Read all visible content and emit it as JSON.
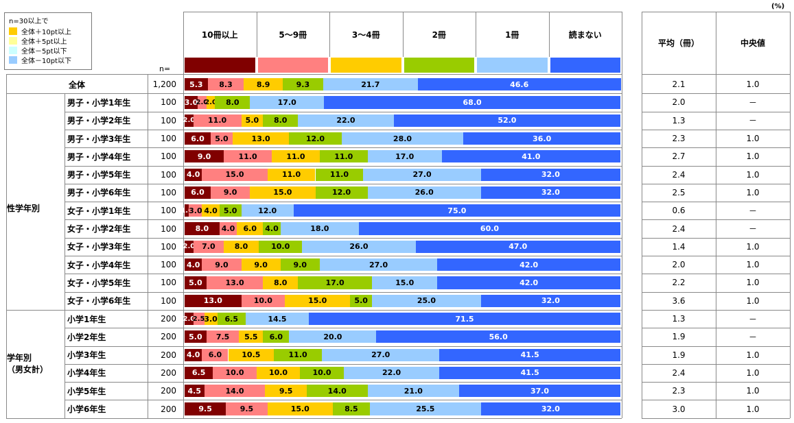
{
  "unit_label": "(%)",
  "n_header": "n=",
  "legend": {
    "title": "n=30以上で",
    "items": [
      {
        "label": "全体＋10pt以上",
        "color": "#FFCC00"
      },
      {
        "label": "全体＋5pt以上",
        "color": "#FFFF99"
      },
      {
        "label": "全体－5pt以下",
        "color": "#CCFFFF"
      },
      {
        "label": "全体－10pt以下",
        "color": "#99CCFF"
      }
    ]
  },
  "stats_headers": [
    "平均（冊）",
    "中央値"
  ],
  "group_labels": {
    "gender_grade": "性学年別",
    "grade": "学年別\n（男女計）"
  },
  "chart_data": {
    "type": "bar",
    "stacked": true,
    "orientation": "horizontal",
    "categories_header": [
      "10冊以上",
      "5～9冊",
      "3～4冊",
      "2冊",
      "1冊",
      "読まない"
    ],
    "series_colors": [
      "#800000",
      "#FF8080",
      "#FFCC00",
      "#99CC00",
      "#99CCFF",
      "#3366FF"
    ],
    "xlim": [
      0,
      100
    ],
    "rows": [
      {
        "label": "全体",
        "n": "1,200",
        "values": [
          5.3,
          8.3,
          8.9,
          9.3,
          21.7,
          46.6
        ],
        "labels": [
          "5.3",
          "8.3",
          "8.9",
          "9.3",
          "21.7",
          "46.6"
        ],
        "mean": "2.1",
        "median": "1.0"
      },
      {
        "label": "男子・小学1年生",
        "n": "100",
        "values": [
          3.0,
          2.0,
          2.0,
          8.0,
          17.0,
          68.0
        ],
        "labels": [
          "3.0",
          "2.0",
          "2.0",
          "8.0",
          "17.0",
          "68.0"
        ],
        "mean": "2.0",
        "median": "－"
      },
      {
        "label": "男子・小学2年生",
        "n": "100",
        "values": [
          2.0,
          11.0,
          5.0,
          8.0,
          22.0,
          52.0
        ],
        "labels": [
          "2.0",
          "11.0",
          "5.0",
          "8.0",
          "22.0",
          "52.0"
        ],
        "mean": "1.3",
        "median": "－"
      },
      {
        "label": "男子・小学3年生",
        "n": "100",
        "values": [
          6.0,
          5.0,
          13.0,
          12.0,
          28.0,
          36.0
        ],
        "labels": [
          "6.0",
          "5.0",
          "13.0",
          "12.0",
          "28.0",
          "36.0"
        ],
        "mean": "2.3",
        "median": "1.0"
      },
      {
        "label": "男子・小学4年生",
        "n": "100",
        "values": [
          9.0,
          11.0,
          11.0,
          11.0,
          17.0,
          41.0
        ],
        "labels": [
          "9.0",
          "11.0",
          "11.0",
          "11.0",
          "17.0",
          "41.0"
        ],
        "mean": "2.7",
        "median": "1.0"
      },
      {
        "label": "男子・小学5年生",
        "n": "100",
        "values": [
          4.0,
          15.0,
          11.0,
          11.0,
          27.0,
          32.0
        ],
        "labels": [
          "4.0",
          "15.0",
          "11.0",
          "11.0",
          "27.0",
          "32.0"
        ],
        "mean": "2.4",
        "median": "1.0"
      },
      {
        "label": "男子・小学6年生",
        "n": "100",
        "values": [
          6.0,
          9.0,
          15.0,
          12.0,
          26.0,
          32.0
        ],
        "labels": [
          "6.0",
          "9.0",
          "15.0",
          "12.0",
          "26.0",
          "32.0"
        ],
        "mean": "2.5",
        "median": "1.0"
      },
      {
        "label": "女子・小学1年生",
        "n": "100",
        "values": [
          1.0,
          3.0,
          4.0,
          5.0,
          12.0,
          75.0
        ],
        "labels": [
          "1.0",
          "3.0",
          "4.0",
          "5.0",
          "12.0",
          "75.0"
        ],
        "mean": "0.6",
        "median": "－"
      },
      {
        "label": "女子・小学2年生",
        "n": "100",
        "values": [
          8.0,
          4.0,
          6.0,
          4.0,
          18.0,
          60.0
        ],
        "labels": [
          "8.0",
          "4.0",
          "6.0",
          "4.0",
          "18.0",
          "60.0"
        ],
        "mean": "2.4",
        "median": "－"
      },
      {
        "label": "女子・小学3年生",
        "n": "100",
        "values": [
          2.0,
          7.0,
          8.0,
          10.0,
          26.0,
          47.0
        ],
        "labels": [
          "2.0",
          "7.0",
          "8.0",
          "10.0",
          "26.0",
          "47.0"
        ],
        "mean": "1.4",
        "median": "1.0"
      },
      {
        "label": "女子・小学4年生",
        "n": "100",
        "values": [
          4.0,
          9.0,
          9.0,
          9.0,
          27.0,
          42.0
        ],
        "labels": [
          "4.0",
          "9.0",
          "9.0",
          "9.0",
          "27.0",
          "42.0"
        ],
        "mean": "2.0",
        "median": "1.0"
      },
      {
        "label": "女子・小学5年生",
        "n": "100",
        "values": [
          5.0,
          13.0,
          8.0,
          17.0,
          15.0,
          42.0
        ],
        "labels": [
          "5.0",
          "13.0",
          "8.0",
          "17.0",
          "15.0",
          "42.0"
        ],
        "mean": "2.2",
        "median": "1.0"
      },
      {
        "label": "女子・小学6年生",
        "n": "100",
        "values": [
          13.0,
          10.0,
          15.0,
          5.0,
          25.0,
          32.0
        ],
        "labels": [
          "13.0",
          "10.0",
          "15.0",
          "5.0",
          "25.0",
          "32.0"
        ],
        "mean": "3.6",
        "median": "1.0"
      },
      {
        "label": "小学1年生",
        "n": "200",
        "values": [
          2.0,
          2.5,
          3.0,
          6.5,
          14.5,
          71.5
        ],
        "labels": [
          "2.0",
          "2.5",
          "3.0",
          "6.5",
          "14.5",
          "71.5"
        ],
        "mean": "1.3",
        "median": "－"
      },
      {
        "label": "小学2年生",
        "n": "200",
        "values": [
          5.0,
          7.5,
          5.5,
          6.0,
          20.0,
          56.0
        ],
        "labels": [
          "5.0",
          "7.5",
          "5.5",
          "6.0",
          "20.0",
          "56.0"
        ],
        "mean": "1.9",
        "median": "－"
      },
      {
        "label": "小学3年生",
        "n": "200",
        "values": [
          4.0,
          6.0,
          10.5,
          11.0,
          27.0,
          41.5
        ],
        "labels": [
          "4.0",
          "6.0",
          "10.5",
          "11.0",
          "27.0",
          "41.5"
        ],
        "mean": "1.9",
        "median": "1.0"
      },
      {
        "label": "小学4年生",
        "n": "200",
        "values": [
          6.5,
          10.0,
          10.0,
          10.0,
          22.0,
          41.5
        ],
        "labels": [
          "6.5",
          "10.0",
          "10.0",
          "10.0",
          "22.0",
          "41.5"
        ],
        "mean": "2.4",
        "median": "1.0"
      },
      {
        "label": "小学5年生",
        "n": "200",
        "values": [
          4.5,
          14.0,
          9.5,
          14.0,
          21.0,
          37.0
        ],
        "labels": [
          "4.5",
          "14.0",
          "9.5",
          "14.0",
          "21.0",
          "37.0"
        ],
        "mean": "2.3",
        "median": "1.0"
      },
      {
        "label": "小学6年生",
        "n": "200",
        "values": [
          9.5,
          9.5,
          15.0,
          8.5,
          25.5,
          32.0
        ],
        "labels": [
          "9.5",
          "9.5",
          "15.0",
          "8.5",
          "25.5",
          "32.0"
        ],
        "mean": "3.0",
        "median": "1.0"
      }
    ]
  }
}
